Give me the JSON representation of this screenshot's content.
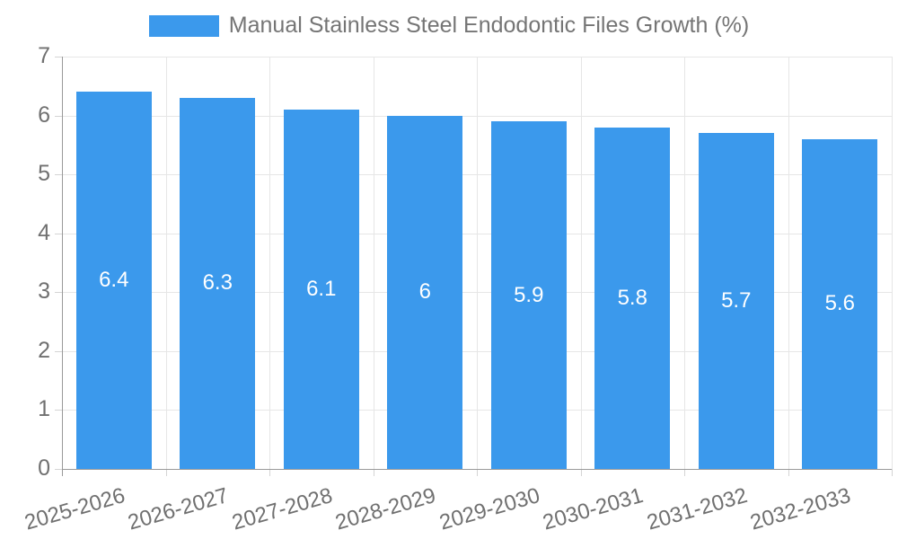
{
  "chart": {
    "colors": {
      "bar": "#3B99EC",
      "grid": "#E6E6E6",
      "axis": "#999999",
      "tick": "#D4D4D4",
      "tick_label": "#707070",
      "legend_text": "#757575",
      "value_label": "#FFFFFF",
      "background": "#FFFFFF"
    },
    "legend": {
      "label": "Manual Stainless Steel Endodontic Files Growth (%)"
    }
  },
  "chart_data": {
    "type": "bar",
    "title": "Manual Stainless Steel Endodontic Files Growth (%)",
    "categories": [
      "2025-2026",
      "2026-2027",
      "2027-2028",
      "2028-2029",
      "2029-2030",
      "2030-2031",
      "2031-2032",
      "2032-2033"
    ],
    "values": [
      6.4,
      6.3,
      6.1,
      6,
      5.9,
      5.8,
      5.7,
      5.6
    ],
    "series": [
      {
        "name": "Manual Stainless Steel Endodontic Files Growth (%)",
        "values": [
          6.4,
          6.3,
          6.1,
          6,
          5.9,
          5.8,
          5.7,
          5.6
        ]
      }
    ],
    "xlabel": "",
    "ylabel": "",
    "ylim": [
      0,
      7
    ],
    "yticks": [
      0,
      1,
      2,
      3,
      4,
      5,
      6,
      7
    ],
    "grid": true,
    "legend_position": "top",
    "value_label_position": "inside-center",
    "x_tick_rotation_deg": -16
  }
}
